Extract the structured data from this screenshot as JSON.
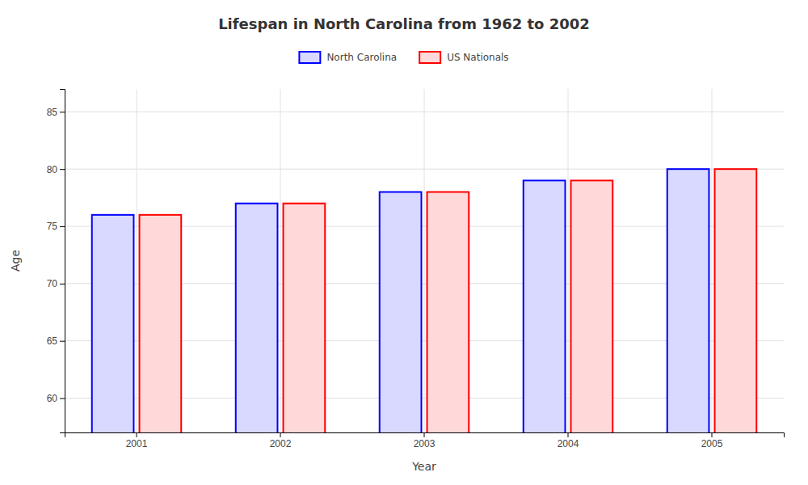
{
  "chart_data": {
    "type": "bar",
    "title": "Lifespan in North Carolina from 1962 to 2002",
    "xlabel": "Year",
    "ylabel": "Age",
    "categories": [
      "2001",
      "2002",
      "2003",
      "2004",
      "2005"
    ],
    "series": [
      {
        "name": "North Carolina",
        "color": "#0000ff",
        "values": [
          76,
          77,
          78,
          79,
          80
        ]
      },
      {
        "name": "US Nationals",
        "color": "#ff0000",
        "values": [
          76,
          77,
          78,
          79,
          80
        ]
      }
    ],
    "ylim": [
      57,
      87
    ],
    "yticks": [
      60,
      65,
      70,
      75,
      80,
      85
    ],
    "grid": true,
    "legend": "top"
  }
}
